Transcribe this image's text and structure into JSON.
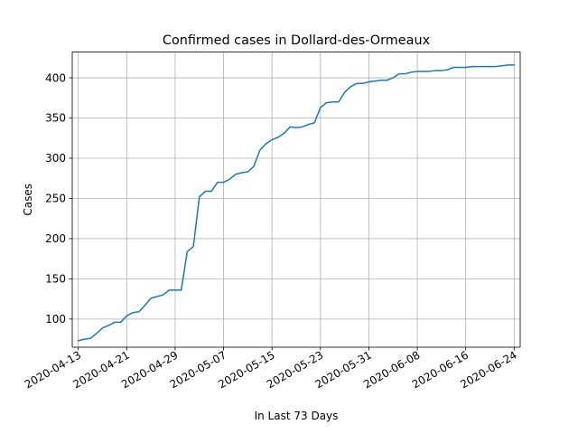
{
  "chart_data": {
    "type": "line",
    "title": "Confirmed cases in Dollard-des-Ormeaux",
    "xlabel": "In Last 73 Days",
    "ylabel": "Cases",
    "grid": true,
    "line_color": "#1f77b4",
    "xlim": [
      "2020-04-12",
      "2020-06-25"
    ],
    "ylim": [
      65,
      432
    ],
    "x_ticks": [
      "2020-04-13",
      "2020-04-21",
      "2020-04-29",
      "2020-05-07",
      "2020-05-15",
      "2020-05-23",
      "2020-05-31",
      "2020-06-08",
      "2020-06-16",
      "2020-06-24"
    ],
    "y_ticks": [
      100,
      150,
      200,
      250,
      300,
      350,
      400
    ],
    "series": [
      {
        "x": [
          "2020-04-13",
          "2020-04-14",
          "2020-04-15",
          "2020-04-16",
          "2020-04-17",
          "2020-04-18",
          "2020-04-19",
          "2020-04-20",
          "2020-04-21",
          "2020-04-22",
          "2020-04-23",
          "2020-04-24",
          "2020-04-25",
          "2020-04-26",
          "2020-04-27",
          "2020-04-28",
          "2020-04-29",
          "2020-04-30",
          "2020-05-01",
          "2020-05-02",
          "2020-05-03",
          "2020-05-04",
          "2020-05-05",
          "2020-05-06",
          "2020-05-07",
          "2020-05-08",
          "2020-05-09",
          "2020-05-10",
          "2020-05-11",
          "2020-05-12",
          "2020-05-13",
          "2020-05-14",
          "2020-05-15",
          "2020-05-16",
          "2020-05-17",
          "2020-05-18",
          "2020-05-19",
          "2020-05-20",
          "2020-05-21",
          "2020-05-22",
          "2020-05-23",
          "2020-05-24",
          "2020-05-25",
          "2020-05-26",
          "2020-05-27",
          "2020-05-28",
          "2020-05-29",
          "2020-05-30",
          "2020-05-31",
          "2020-06-01",
          "2020-06-02",
          "2020-06-03",
          "2020-06-04",
          "2020-06-05",
          "2020-06-06",
          "2020-06-07",
          "2020-06-08",
          "2020-06-09",
          "2020-06-10",
          "2020-06-11",
          "2020-06-12",
          "2020-06-13",
          "2020-06-14",
          "2020-06-15",
          "2020-06-16",
          "2020-06-17",
          "2020-06-18",
          "2020-06-19",
          "2020-06-20",
          "2020-06-21",
          "2020-06-22",
          "2020-06-23",
          "2020-06-24"
        ],
        "y": [
          73,
          75,
          76,
          82,
          89,
          92,
          96,
          96,
          104,
          108,
          109,
          117,
          126,
          128,
          130,
          136,
          136,
          136,
          184,
          190,
          252,
          259,
          259,
          270,
          270,
          274,
          280,
          282,
          283,
          290,
          310,
          318,
          323,
          326,
          331,
          339,
          338,
          339,
          342,
          344,
          363,
          369,
          370,
          370,
          382,
          389,
          393,
          393,
          395,
          396,
          397,
          397,
          400,
          405,
          405,
          407,
          408,
          408,
          408,
          409,
          409,
          410,
          413,
          413,
          413,
          414,
          414,
          414,
          414,
          414,
          415,
          416,
          416
        ]
      }
    ]
  }
}
